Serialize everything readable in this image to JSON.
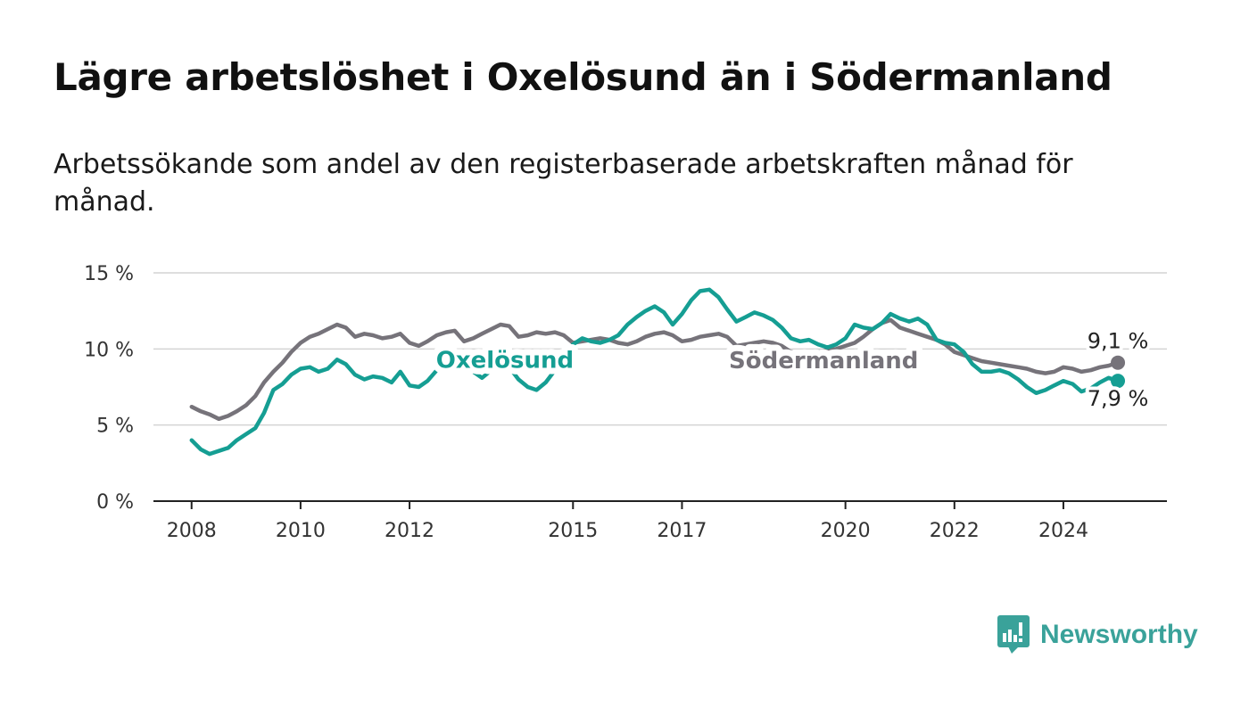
{
  "header": {
    "title": "Lägre arbetslöshet i Oxelösund än i Södermanland",
    "subtitle": "Arbetssökande som andel av den registerbaserade arbetskraften månad för månad."
  },
  "brand": {
    "name": "Newsworthy",
    "color": "#3aa29a",
    "logo_icon": "chart-bubble-icon"
  },
  "chart_data": {
    "type": "line",
    "ylim": [
      0,
      15
    ],
    "yticks": [
      0,
      5,
      10,
      15
    ],
    "ytick_labels": [
      "0 %",
      "5 %",
      "10 %",
      "15 %"
    ],
    "xlim": [
      2007.3,
      2025.9
    ],
    "xticks": [
      2008,
      2010,
      2012,
      2015,
      2017,
      2020,
      2022,
      2024
    ],
    "xtick_labels": [
      "2008",
      "2010",
      "2012",
      "2015",
      "2017",
      "2020",
      "2022",
      "2024"
    ],
    "grid": true,
    "series": [
      {
        "name": "Södermanland",
        "color": "#76737a",
        "end_label": "9,1 %",
        "points": [
          [
            2008.0,
            6.2
          ],
          [
            2008.17,
            5.9
          ],
          [
            2008.33,
            5.7
          ],
          [
            2008.5,
            5.4
          ],
          [
            2008.67,
            5.6
          ],
          [
            2008.83,
            5.9
          ],
          [
            2009.0,
            6.3
          ],
          [
            2009.17,
            6.9
          ],
          [
            2009.33,
            7.8
          ],
          [
            2009.5,
            8.5
          ],
          [
            2009.67,
            9.1
          ],
          [
            2009.83,
            9.8
          ],
          [
            2010.0,
            10.4
          ],
          [
            2010.17,
            10.8
          ],
          [
            2010.33,
            11.0
          ],
          [
            2010.5,
            11.3
          ],
          [
            2010.67,
            11.6
          ],
          [
            2010.83,
            11.4
          ],
          [
            2011.0,
            10.8
          ],
          [
            2011.17,
            11.0
          ],
          [
            2011.33,
            10.9
          ],
          [
            2011.5,
            10.7
          ],
          [
            2011.67,
            10.8
          ],
          [
            2011.83,
            11.0
          ],
          [
            2012.0,
            10.4
          ],
          [
            2012.17,
            10.2
          ],
          [
            2012.33,
            10.5
          ],
          [
            2012.5,
            10.9
          ],
          [
            2012.67,
            11.1
          ],
          [
            2012.83,
            11.2
          ],
          [
            2013.0,
            10.5
          ],
          [
            2013.17,
            10.7
          ],
          [
            2013.33,
            11.0
          ],
          [
            2013.5,
            11.3
          ],
          [
            2013.67,
            11.6
          ],
          [
            2013.83,
            11.5
          ],
          [
            2014.0,
            10.8
          ],
          [
            2014.17,
            10.9
          ],
          [
            2014.33,
            11.1
          ],
          [
            2014.5,
            11.0
          ],
          [
            2014.67,
            11.1
          ],
          [
            2014.83,
            10.9
          ],
          [
            2015.0,
            10.4
          ],
          [
            2015.17,
            10.5
          ],
          [
            2015.33,
            10.6
          ],
          [
            2015.5,
            10.7
          ],
          [
            2015.67,
            10.6
          ],
          [
            2015.83,
            10.4
          ],
          [
            2016.0,
            10.3
          ],
          [
            2016.17,
            10.5
          ],
          [
            2016.33,
            10.8
          ],
          [
            2016.5,
            11.0
          ],
          [
            2016.67,
            11.1
          ],
          [
            2016.83,
            10.9
          ],
          [
            2017.0,
            10.5
          ],
          [
            2017.17,
            10.6
          ],
          [
            2017.33,
            10.8
          ],
          [
            2017.5,
            10.9
          ],
          [
            2017.67,
            11.0
          ],
          [
            2017.83,
            10.8
          ],
          [
            2018.0,
            10.2
          ],
          [
            2018.17,
            10.3
          ],
          [
            2018.33,
            10.4
          ],
          [
            2018.5,
            10.5
          ],
          [
            2018.67,
            10.4
          ],
          [
            2018.83,
            10.2
          ],
          [
            2019.0,
            9.8
          ],
          [
            2019.17,
            9.7
          ],
          [
            2019.33,
            9.7
          ],
          [
            2019.5,
            9.8
          ],
          [
            2019.67,
            9.9
          ],
          [
            2019.83,
            10.0
          ],
          [
            2020.0,
            10.2
          ],
          [
            2020.17,
            10.4
          ],
          [
            2020.33,
            10.8
          ],
          [
            2020.5,
            11.3
          ],
          [
            2020.67,
            11.7
          ],
          [
            2020.83,
            11.9
          ],
          [
            2021.0,
            11.4
          ],
          [
            2021.17,
            11.2
          ],
          [
            2021.33,
            11.0
          ],
          [
            2021.5,
            10.8
          ],
          [
            2021.67,
            10.6
          ],
          [
            2021.83,
            10.3
          ],
          [
            2022.0,
            9.8
          ],
          [
            2022.17,
            9.6
          ],
          [
            2022.33,
            9.4
          ],
          [
            2022.5,
            9.2
          ],
          [
            2022.67,
            9.1
          ],
          [
            2022.83,
            9.0
          ],
          [
            2023.0,
            8.9
          ],
          [
            2023.17,
            8.8
          ],
          [
            2023.33,
            8.7
          ],
          [
            2023.5,
            8.5
          ],
          [
            2023.67,
            8.4
          ],
          [
            2023.83,
            8.5
          ],
          [
            2024.0,
            8.8
          ],
          [
            2024.17,
            8.7
          ],
          [
            2024.33,
            8.5
          ],
          [
            2024.5,
            8.6
          ],
          [
            2024.67,
            8.8
          ],
          [
            2024.83,
            8.9
          ],
          [
            2025.0,
            9.1
          ]
        ]
      },
      {
        "name": "Oxelösund",
        "color": "#159e93",
        "end_label": "7,9 %",
        "points": [
          [
            2008.0,
            4.0
          ],
          [
            2008.17,
            3.4
          ],
          [
            2008.33,
            3.1
          ],
          [
            2008.5,
            3.3
          ],
          [
            2008.67,
            3.5
          ],
          [
            2008.83,
            4.0
          ],
          [
            2009.0,
            4.4
          ],
          [
            2009.17,
            4.8
          ],
          [
            2009.33,
            5.8
          ],
          [
            2009.5,
            7.3
          ],
          [
            2009.67,
            7.7
          ],
          [
            2009.83,
            8.3
          ],
          [
            2010.0,
            8.7
          ],
          [
            2010.17,
            8.8
          ],
          [
            2010.33,
            8.5
          ],
          [
            2010.5,
            8.7
          ],
          [
            2010.67,
            9.3
          ],
          [
            2010.83,
            9.0
          ],
          [
            2011.0,
            8.3
          ],
          [
            2011.17,
            8.0
          ],
          [
            2011.33,
            8.2
          ],
          [
            2011.5,
            8.1
          ],
          [
            2011.67,
            7.8
          ],
          [
            2011.83,
            8.5
          ],
          [
            2012.0,
            7.6
          ],
          [
            2012.17,
            7.5
          ],
          [
            2012.33,
            7.9
          ],
          [
            2012.5,
            8.6
          ],
          [
            2012.67,
            9.0
          ],
          [
            2012.83,
            9.1
          ],
          [
            2013.0,
            8.8
          ],
          [
            2013.17,
            8.5
          ],
          [
            2013.33,
            8.1
          ],
          [
            2013.5,
            8.6
          ],
          [
            2013.67,
            9.0
          ],
          [
            2013.83,
            8.8
          ],
          [
            2014.0,
            8.0
          ],
          [
            2014.17,
            7.5
          ],
          [
            2014.33,
            7.3
          ],
          [
            2014.5,
            7.8
          ],
          [
            2014.67,
            8.6
          ],
          [
            2014.83,
            9.4
          ],
          [
            2015.0,
            10.3
          ],
          [
            2015.17,
            10.7
          ],
          [
            2015.33,
            10.5
          ],
          [
            2015.5,
            10.4
          ],
          [
            2015.67,
            10.6
          ],
          [
            2015.83,
            10.9
          ],
          [
            2016.0,
            11.6
          ],
          [
            2016.17,
            12.1
          ],
          [
            2016.33,
            12.5
          ],
          [
            2016.5,
            12.8
          ],
          [
            2016.67,
            12.4
          ],
          [
            2016.83,
            11.6
          ],
          [
            2017.0,
            12.3
          ],
          [
            2017.17,
            13.2
          ],
          [
            2017.33,
            13.8
          ],
          [
            2017.5,
            13.9
          ],
          [
            2017.67,
            13.4
          ],
          [
            2017.83,
            12.6
          ],
          [
            2018.0,
            11.8
          ],
          [
            2018.17,
            12.1
          ],
          [
            2018.33,
            12.4
          ],
          [
            2018.5,
            12.2
          ],
          [
            2018.67,
            11.9
          ],
          [
            2018.83,
            11.4
          ],
          [
            2019.0,
            10.7
          ],
          [
            2019.17,
            10.5
          ],
          [
            2019.33,
            10.6
          ],
          [
            2019.5,
            10.3
          ],
          [
            2019.67,
            10.1
          ],
          [
            2019.83,
            10.3
          ],
          [
            2020.0,
            10.7
          ],
          [
            2020.17,
            11.6
          ],
          [
            2020.33,
            11.4
          ],
          [
            2020.5,
            11.3
          ],
          [
            2020.67,
            11.7
          ],
          [
            2020.83,
            12.3
          ],
          [
            2021.0,
            12.0
          ],
          [
            2021.17,
            11.8
          ],
          [
            2021.33,
            12.0
          ],
          [
            2021.5,
            11.6
          ],
          [
            2021.67,
            10.6
          ],
          [
            2021.83,
            10.4
          ],
          [
            2022.0,
            10.3
          ],
          [
            2022.17,
            9.8
          ],
          [
            2022.33,
            9.0
          ],
          [
            2022.5,
            8.5
          ],
          [
            2022.67,
            8.5
          ],
          [
            2022.83,
            8.6
          ],
          [
            2023.0,
            8.4
          ],
          [
            2023.17,
            8.0
          ],
          [
            2023.33,
            7.5
          ],
          [
            2023.5,
            7.1
          ],
          [
            2023.67,
            7.3
          ],
          [
            2023.83,
            7.6
          ],
          [
            2024.0,
            7.9
          ],
          [
            2024.17,
            7.7
          ],
          [
            2024.33,
            7.2
          ],
          [
            2024.5,
            7.4
          ],
          [
            2024.67,
            7.8
          ],
          [
            2024.83,
            8.1
          ],
          [
            2025.0,
            7.9
          ]
        ]
      }
    ],
    "series_labels": [
      {
        "name": "Oxelösund",
        "x": 2013.75,
        "y": 9.3
      },
      {
        "name": "Södermanland",
        "x": 2019.6,
        "y": 9.25
      }
    ]
  }
}
